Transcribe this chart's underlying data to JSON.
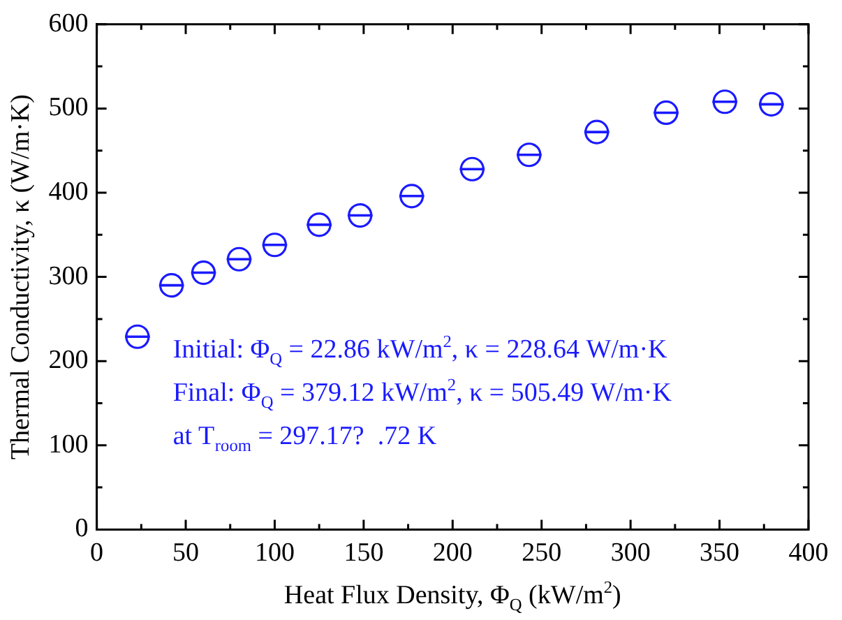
{
  "chart_data": {
    "type": "scatter",
    "xlabel": "Heat Flux Density, Φ$_{Q}$ (kW/m$^{2}$)",
    "ylabel": "Thermal Conductivity, κ (W/m·K)",
    "x": [
      22.86,
      42,
      60,
      80,
      100,
      125,
      148,
      177,
      211,
      243,
      281,
      320,
      353,
      379.12
    ],
    "series": [
      {
        "color": "#1a1aff",
        "values": [
          229,
          290,
          305,
          321,
          338,
          362,
          373,
          396,
          428,
          445,
          472,
          495,
          508,
          505
        ],
        "xerrors": [
          7,
          7,
          7,
          7,
          7,
          7,
          7,
          7,
          7,
          7,
          7,
          7,
          7,
          7
        ]
      }
    ],
    "xlim": [
      0,
      400
    ],
    "ylim": [
      0,
      600
    ],
    "xticks": [
      0,
      {
        "value": 25,
        "label": null
      },
      50,
      {
        "value": 75,
        "label": null
      },
      100,
      {
        "value": 125,
        "label": null
      },
      150,
      {
        "value": 175,
        "label": null
      },
      200,
      {
        "value": 225,
        "label": null
      },
      250,
      {
        "value": 275,
        "label": null
      },
      300,
      {
        "value": 325,
        "label": null
      },
      350,
      {
        "value": 375,
        "label": null
      },
      400
    ],
    "yticks": [
      0,
      {
        "value": 50,
        "label": null
      },
      100,
      {
        "value": 150,
        "label": null
      },
      200,
      {
        "value": 250,
        "label": null
      },
      300,
      {
        "value": 350,
        "label": null
      },
      400,
      {
        "value": 450,
        "label": null
      },
      500,
      {
        "value": 550,
        "label": null
      },
      600
    ],
    "annotations": [
      "Initial: Φ$_{Q}$ = 22.86 kW/m$^{2}$, κ = 228.64 W/m·K",
      "Final: Φ$_{Q}$ = 379.12 kW/m$^{2}$, κ = 505.49 W/m·K",
      "at T$_{room}$ = 297.17?  .72 K"
    ],
    "grid": false,
    "legend": false,
    "marker": "circle"
  }
}
